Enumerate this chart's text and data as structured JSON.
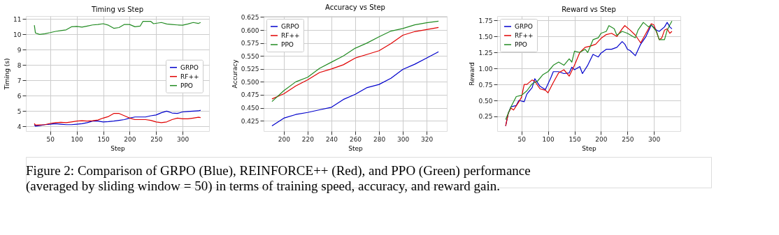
{
  "chart_data": [
    {
      "type": "line",
      "title": "Timing vs Step",
      "xlabel": "Step",
      "ylabel": "Timing (s)",
      "xlim": [
        4,
        350
      ],
      "xticks": [
        50,
        100,
        150,
        200,
        250,
        300
      ],
      "ylim": [
        3.7,
        11.2
      ],
      "yticks": [
        4,
        5,
        6,
        7,
        8,
        9,
        10,
        11
      ],
      "grid": true,
      "legend": "right",
      "annotations": [
        "Figure 2: Comparison of GRPO (Blue), REINFORCE++ (Red), and PPO (Green) performance (averaged by sliding window = 50) in terms of training speed, accuracy, and reward gain."
      ],
      "series": [
        {
          "name": "GRPO",
          "color": "#0000cc",
          "x": [
            20,
            22,
            30,
            40,
            50,
            60,
            70,
            80,
            90,
            100,
            110,
            120,
            130,
            140,
            150,
            160,
            170,
            180,
            190,
            200,
            210,
            220,
            230,
            240,
            250,
            260,
            270,
            280,
            290,
            300,
            310,
            320,
            330,
            334
          ],
          "values": [
            4.12,
            4.02,
            4.06,
            4.12,
            4.15,
            4.18,
            4.15,
            4.12,
            4.12,
            4.15,
            4.18,
            4.25,
            4.35,
            4.35,
            4.3,
            4.32,
            4.35,
            4.4,
            4.45,
            4.55,
            4.62,
            4.62,
            4.62,
            4.7,
            4.75,
            4.9,
            5.0,
            4.88,
            4.85,
            4.95,
            4.98,
            5.0,
            5.02,
            5.06
          ]
        },
        {
          "name": "RF++",
          "color": "#e00000",
          "x": [
            20,
            22,
            30,
            40,
            50,
            60,
            70,
            80,
            90,
            100,
            110,
            120,
            130,
            140,
            150,
            160,
            170,
            180,
            190,
            200,
            210,
            220,
            230,
            240,
            250,
            260,
            270,
            280,
            290,
            300,
            310,
            320,
            330,
            334
          ],
          "values": [
            4.2,
            4.09,
            4.1,
            4.12,
            4.2,
            4.25,
            4.27,
            4.25,
            4.3,
            4.35,
            4.38,
            4.35,
            4.38,
            4.42,
            4.55,
            4.65,
            4.85,
            4.85,
            4.7,
            4.55,
            4.45,
            4.45,
            4.45,
            4.4,
            4.3,
            4.25,
            4.3,
            4.45,
            4.55,
            4.5,
            4.5,
            4.55,
            4.6,
            4.58
          ]
        },
        {
          "name": "PPO",
          "color": "#228b22",
          "x": [
            20,
            22,
            30,
            40,
            50,
            60,
            70,
            80,
            90,
            100,
            110,
            120,
            130,
            140,
            150,
            160,
            170,
            180,
            190,
            200,
            210,
            220,
            225,
            240,
            245,
            260,
            270,
            280,
            290,
            300,
            310,
            320,
            330,
            334
          ],
          "values": [
            10.6,
            10.1,
            10.0,
            10.05,
            10.12,
            10.2,
            10.25,
            10.3,
            10.5,
            10.52,
            10.48,
            10.55,
            10.62,
            10.65,
            10.7,
            10.6,
            10.4,
            10.45,
            10.65,
            10.65,
            10.5,
            10.55,
            10.85,
            10.85,
            10.7,
            10.78,
            10.68,
            10.65,
            10.62,
            10.6,
            10.68,
            10.78,
            10.72,
            10.78
          ]
        }
      ]
    },
    {
      "type": "line",
      "title": "Accuracy vs Step",
      "xlabel": "Step",
      "ylabel": "Accuracy",
      "xlim": [
        183,
        337
      ],
      "xticks": [
        200,
        220,
        240,
        260,
        280,
        300,
        320
      ],
      "ylim": [
        0.405,
        0.627
      ],
      "yticks": [
        {
          "value": 0.425,
          "label": "0.425"
        },
        {
          "value": 0.45,
          "label": "0.450"
        },
        {
          "value": 0.475,
          "label": "0.475"
        },
        {
          "value": 0.5,
          "label": "0.500"
        },
        {
          "value": 0.525,
          "label": "0.525"
        },
        {
          "value": 0.55,
          "label": "0.550"
        },
        {
          "value": 0.575,
          "label": "0.575"
        },
        {
          "value": 0.6,
          "label": "0.600"
        },
        {
          "value": 0.625,
          "label": "0.625"
        }
      ],
      "grid": true,
      "legend": "top left",
      "series": [
        {
          "name": "GRPO",
          "color": "#0000cc",
          "x": [
            190,
            200,
            210,
            220,
            230,
            240,
            250,
            260,
            270,
            280,
            290,
            300,
            310,
            320,
            330
          ],
          "values": [
            0.415,
            0.43,
            0.437,
            0.441,
            0.446,
            0.451,
            0.466,
            0.476,
            0.489,
            0.495,
            0.507,
            0.524,
            0.534,
            0.546,
            0.558
          ]
        },
        {
          "name": "RF++",
          "color": "#e00000",
          "x": [
            190,
            200,
            210,
            220,
            230,
            240,
            250,
            260,
            270,
            280,
            290,
            300,
            310,
            320,
            330
          ],
          "values": [
            0.467,
            0.477,
            0.492,
            0.504,
            0.518,
            0.525,
            0.533,
            0.546,
            0.553,
            0.56,
            0.574,
            0.59,
            0.597,
            0.601,
            0.605
          ]
        },
        {
          "name": "PPO",
          "color": "#228b22",
          "x": [
            190,
            200,
            210,
            220,
            230,
            240,
            250,
            260,
            270,
            280,
            290,
            300,
            310,
            320,
            330
          ],
          "values": [
            0.462,
            0.483,
            0.5,
            0.509,
            0.526,
            0.538,
            0.55,
            0.565,
            0.575,
            0.587,
            0.598,
            0.603,
            0.61,
            0.614,
            0.617
          ]
        }
      ]
    },
    {
      "type": "line",
      "title": "Reward vs Step",
      "xlabel": "Step",
      "ylabel": "Reward",
      "xlim": [
        4,
        350
      ],
      "xticks": [
        50,
        100,
        150,
        200,
        250,
        300
      ],
      "ylim": [
        0.02,
        1.82
      ],
      "yticks": [
        {
          "value": 0.25,
          "label": "0.25"
        },
        {
          "value": 0.5,
          "label": "0.50"
        },
        {
          "value": 0.75,
          "label": "0.75"
        },
        {
          "value": 1.0,
          "label": "1.00"
        },
        {
          "value": 1.25,
          "label": "1.25"
        },
        {
          "value": 1.5,
          "label": "1.50"
        },
        {
          "value": 1.75,
          "label": "1.75"
        }
      ],
      "grid": true,
      "legend": "top left",
      "series": [
        {
          "name": "GRPO",
          "color": "#0000cc",
          "x": [
            20,
            25,
            30,
            40,
            45,
            55,
            60,
            70,
            75,
            85,
            95,
            105,
            110,
            120,
            130,
            140,
            145,
            150,
            160,
            165,
            175,
            185,
            195,
            200,
            210,
            220,
            230,
            240,
            245,
            250,
            255,
            265,
            275,
            285,
            295,
            305,
            310,
            320,
            325,
            330,
            334
          ],
          "values": [
            0.1,
            0.3,
            0.4,
            0.42,
            0.5,
            0.48,
            0.6,
            0.7,
            0.84,
            0.72,
            0.67,
            0.85,
            0.95,
            0.95,
            0.92,
            0.93,
            1.02,
            0.98,
            1.03,
            0.92,
            1.05,
            1.22,
            1.18,
            1.24,
            1.3,
            1.3,
            1.33,
            1.42,
            1.38,
            1.3,
            1.28,
            1.2,
            1.38,
            1.5,
            1.68,
            1.6,
            1.58,
            1.65,
            1.72,
            1.65,
            1.62
          ]
        },
        {
          "name": "RF++",
          "color": "#e00000",
          "x": [
            20,
            25,
            30,
            35,
            45,
            50,
            55,
            60,
            70,
            75,
            85,
            95,
            100,
            110,
            120,
            130,
            140,
            150,
            160,
            170,
            180,
            190,
            200,
            210,
            220,
            230,
            240,
            245,
            255,
            265,
            275,
            285,
            295,
            300,
            310,
            315,
            320,
            325,
            330,
            334
          ],
          "values": [
            0.1,
            0.3,
            0.38,
            0.35,
            0.48,
            0.55,
            0.75,
            0.75,
            0.82,
            0.8,
            0.68,
            0.66,
            0.62,
            0.78,
            0.93,
            0.98,
            0.88,
            1.05,
            1.25,
            1.33,
            1.35,
            1.38,
            1.47,
            1.53,
            1.55,
            1.5,
            1.62,
            1.67,
            1.6,
            1.52,
            1.4,
            1.55,
            1.7,
            1.68,
            1.45,
            1.48,
            1.6,
            1.62,
            1.55,
            1.58
          ]
        },
        {
          "name": "PPO",
          "color": "#228b22",
          "x": [
            20,
            25,
            30,
            40,
            50,
            60,
            70,
            80,
            90,
            100,
            110,
            120,
            130,
            140,
            145,
            150,
            160,
            170,
            175,
            185,
            195,
            200,
            210,
            215,
            225,
            230,
            240,
            250,
            260,
            265,
            270,
            280,
            290,
            295,
            305,
            310,
            320,
            325,
            330,
            334
          ],
          "values": [
            0.2,
            0.3,
            0.4,
            0.56,
            0.58,
            0.65,
            0.76,
            0.8,
            0.9,
            0.95,
            1.05,
            1.1,
            1.05,
            1.15,
            1.1,
            1.27,
            1.25,
            1.3,
            1.25,
            1.45,
            1.48,
            1.55,
            1.58,
            1.67,
            1.62,
            1.52,
            1.58,
            1.55,
            1.5,
            1.48,
            1.6,
            1.72,
            1.65,
            1.68,
            1.58,
            1.45,
            1.45,
            1.6,
            1.68,
            1.74
          ]
        }
      ]
    }
  ]
}
